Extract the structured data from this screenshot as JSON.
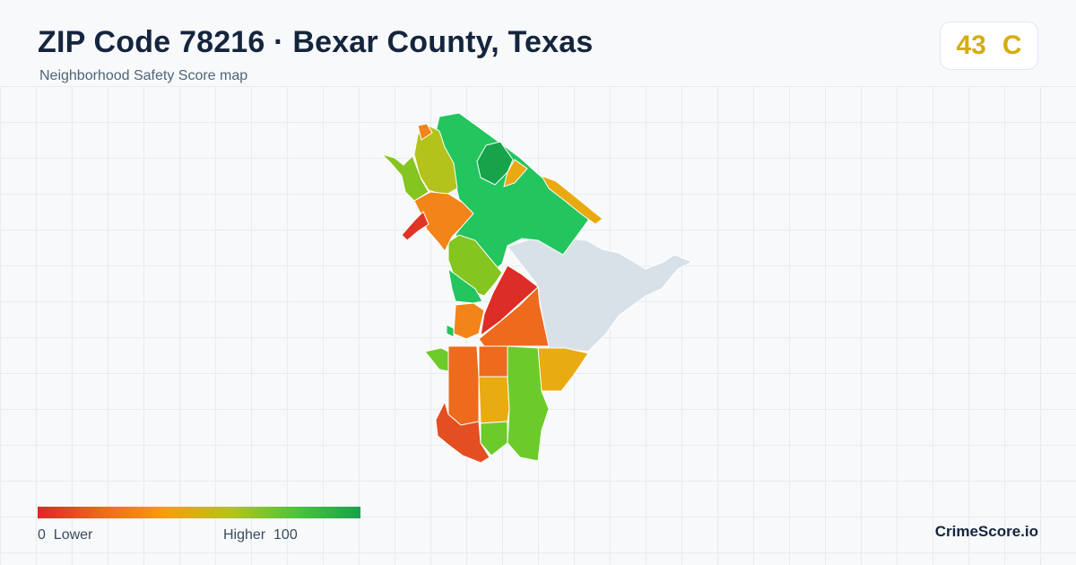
{
  "header": {
    "title": "ZIP Code 78216 · Bexar County, Texas",
    "subtitle": "Neighborhood Safety Score map"
  },
  "score": {
    "value": "43",
    "grade": "C",
    "color": "#d4ad0f"
  },
  "legend": {
    "low_value": "0",
    "low_label": "Lower",
    "high_label": "Higher",
    "high_value": "100",
    "gradient": [
      "#dc2626",
      "#ee6a1c",
      "#f59e0b",
      "#b4c419",
      "#4fc33c",
      "#16a34a"
    ]
  },
  "brand": "CrimeScore.io",
  "map": {
    "outside_color": "#d8e1e8",
    "regions": [
      {
        "name": "region-north-main",
        "score": 82,
        "color": "#22c55e"
      },
      {
        "name": "region-north-dark",
        "score": 90,
        "color": "#16a34a"
      },
      {
        "name": "region-northeast-strip",
        "score": 45,
        "color": "#eaa911"
      },
      {
        "name": "region-northwest-olive",
        "score": 60,
        "color": "#b4c21c"
      },
      {
        "name": "region-northwest-lime",
        "score": 70,
        "color": "#84c51f"
      },
      {
        "name": "region-west-orange",
        "score": 30,
        "color": "#f2841a"
      },
      {
        "name": "region-west-red",
        "score": 10,
        "color": "#df3525"
      },
      {
        "name": "region-center-green",
        "score": 80,
        "color": "#22c55e"
      },
      {
        "name": "region-center-red",
        "score": 8,
        "color": "#dc2d26"
      },
      {
        "name": "region-south-orange",
        "score": 25,
        "color": "#ee6a1c"
      },
      {
        "name": "region-south-amber",
        "score": 45,
        "color": "#e9ab12"
      },
      {
        "name": "region-south-lime",
        "score": 72,
        "color": "#6ccb2a"
      },
      {
        "name": "region-southwest-red",
        "score": 15,
        "color": "#e44f22"
      }
    ]
  }
}
